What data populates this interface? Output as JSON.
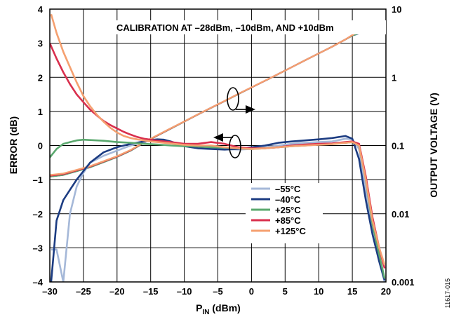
{
  "chart_data": {
    "type": "line",
    "annotation": "CALIBRATION AT –28dBm, –10dBm, AND +10dBm",
    "xlabel": {
      "main": "P",
      "sub": "IN",
      "suffix": " (dBm)"
    },
    "ylabel_left": "ERROR (dB)",
    "ylabel_right": "OUTPUT VOLTAGE (V)",
    "figure_id": "11617-015",
    "xlim": [
      -30,
      20
    ],
    "ylim_left": [
      -4,
      4
    ],
    "ylim_right": [
      0.001,
      10
    ],
    "right_axis_scale": "log",
    "grid": true,
    "legend_placement": "lower-right",
    "x_ticks": [
      "–30",
      "–25",
      "–20",
      "–15",
      "–10",
      "–5",
      "0",
      "5",
      "10",
      "15",
      "20"
    ],
    "x_tick_values": [
      -30,
      -25,
      -20,
      -15,
      -10,
      -5,
      0,
      5,
      10,
      15,
      20
    ],
    "y_left_ticks": [
      "4",
      "3",
      "2",
      "1",
      "0",
      "–1",
      "–2",
      "–3",
      "–4"
    ],
    "y_left_tick_values": [
      4,
      3,
      2,
      1,
      0,
      -1,
      -2,
      -3,
      -4
    ],
    "y_right_ticks": [
      "10",
      "1",
      "0.1",
      "0.01",
      "0.001"
    ],
    "y_right_tick_values": [
      10,
      1,
      0.1,
      0.01,
      0.001
    ],
    "series": [
      {
        "name": "–55°C",
        "color": "#a5b8d8",
        "error_x": [
          -29.8,
          -29.0,
          -28.0,
          -27.0,
          -26.0,
          -25.0,
          -24.0,
          -22.0,
          -20.0,
          -18.0,
          -16.0,
          -15.0,
          -14.0,
          -13.0,
          -12.0,
          -11.0,
          -10.0,
          -8.0,
          -6.0,
          -4.0,
          -2.0,
          0.0,
          2.0,
          4.0,
          6.0,
          8.0,
          10.0,
          12.0,
          14.0,
          15.0,
          16.0,
          17.0,
          18.0,
          19.0,
          19.8
        ],
        "error_y": [
          -3.05,
          -3.05,
          -4.0,
          -2.0,
          -1.2,
          -0.8,
          -0.5,
          -0.3,
          -0.15,
          0.0,
          0.1,
          0.15,
          0.17,
          0.15,
          0.1,
          0.05,
          0.0,
          -0.05,
          -0.07,
          -0.1,
          -0.12,
          -0.1,
          -0.05,
          0.0,
          0.05,
          0.08,
          0.1,
          0.12,
          0.2,
          0.18,
          -0.1,
          -1.3,
          -2.5,
          -3.4,
          -4.0
        ],
        "voltage_x": [
          -30,
          -28,
          -26,
          -24,
          -22,
          -20,
          -18,
          -16,
          -14,
          -12,
          -10,
          -8,
          -6,
          -4,
          -2,
          0,
          2,
          4,
          6,
          8,
          10,
          12,
          14,
          15,
          16,
          18,
          20
        ],
        "voltage_y": [
          0.036,
          0.038,
          0.043,
          0.049,
          0.058,
          0.069,
          0.085,
          0.112,
          0.142,
          0.179,
          0.226,
          0.286,
          0.36,
          0.45,
          0.57,
          0.71,
          0.89,
          1.12,
          1.41,
          1.78,
          2.24,
          2.82,
          3.6,
          4.1,
          4.4,
          4.47,
          4.5
        ]
      },
      {
        "name": "–40°C",
        "color": "#1c3c82",
        "error_x": [
          -29.8,
          -29.0,
          -28.0,
          -27.0,
          -26.0,
          -25.0,
          -24.0,
          -22.0,
          -20.0,
          -18.0,
          -16.0,
          -15.0,
          -14.0,
          -13.0,
          -12.0,
          -11.0,
          -10.0,
          -8.0,
          -6.0,
          -4.0,
          -2.0,
          0.0,
          2.0,
          4.0,
          6.0,
          8.0,
          10.0,
          12.0,
          14.0,
          15.0,
          16.0,
          17.0,
          18.0,
          19.0,
          19.8
        ],
        "error_y": [
          -4.0,
          -2.2,
          -1.6,
          -1.3,
          -1.0,
          -0.75,
          -0.5,
          -0.2,
          -0.05,
          0.05,
          0.12,
          0.16,
          0.18,
          0.17,
          0.12,
          0.05,
          -0.02,
          -0.08,
          -0.1,
          -0.12,
          -0.1,
          -0.05,
          0.0,
          0.08,
          0.12,
          0.15,
          0.18,
          0.22,
          0.28,
          0.2,
          -0.4,
          -1.6,
          -2.6,
          -3.4,
          -3.95
        ],
        "voltage_x": [
          -30,
          -28,
          -26,
          -24,
          -22,
          -20,
          -18,
          -16,
          -14,
          -12,
          -10,
          -8,
          -6,
          -4,
          -2,
          0,
          2,
          4,
          6,
          8,
          10,
          12,
          14,
          15,
          16,
          18,
          20
        ],
        "voltage_y": [
          0.035,
          0.037,
          0.042,
          0.048,
          0.057,
          0.068,
          0.084,
          0.11,
          0.14,
          0.177,
          0.224,
          0.284,
          0.357,
          0.448,
          0.565,
          0.71,
          0.89,
          1.12,
          1.41,
          1.78,
          2.24,
          2.82,
          3.6,
          4.1,
          4.4,
          4.47,
          4.5
        ]
      },
      {
        "name": "+25°C",
        "color": "#5aa86e",
        "error_x": [
          -30.0,
          -29.0,
          -28.0,
          -27.0,
          -26.0,
          -25.0,
          -24.0,
          -22.0,
          -20.0,
          -18.0,
          -16.0,
          -15.0,
          -14.0,
          -12.0,
          -10.0,
          -8.0,
          -6.0,
          -4.0,
          -2.0,
          0.0,
          2.0,
          4.0,
          6.0,
          8.0,
          10.0,
          12.0,
          14.0,
          15.0,
          16.0,
          17.0,
          18.0,
          19.0,
          19.8
        ],
        "error_y": [
          -0.35,
          -0.1,
          0.05,
          0.1,
          0.15,
          0.17,
          0.16,
          0.14,
          0.1,
          0.08,
          0.05,
          0.04,
          0.03,
          0.0,
          -0.02,
          -0.03,
          -0.05,
          -0.06,
          -0.08,
          -0.1,
          -0.08,
          -0.05,
          -0.02,
          0.0,
          0.03,
          0.05,
          0.08,
          0.1,
          0.0,
          -1.0,
          -2.3,
          -3.2,
          -3.9
        ],
        "voltage_x": [
          -30,
          -28,
          -26,
          -24,
          -22,
          -20,
          -18,
          -16,
          -14,
          -12,
          -10,
          -8,
          -6,
          -4,
          -2,
          0,
          2,
          4,
          6,
          8,
          10,
          12,
          14,
          15,
          16,
          18,
          20
        ],
        "voltage_y": [
          0.035,
          0.037,
          0.042,
          0.048,
          0.057,
          0.068,
          0.084,
          0.11,
          0.14,
          0.177,
          0.224,
          0.284,
          0.357,
          0.448,
          0.565,
          0.71,
          0.89,
          1.12,
          1.41,
          1.78,
          2.24,
          2.82,
          3.6,
          4.1,
          4.45,
          4.55,
          4.6
        ]
      },
      {
        "name": "+85°C",
        "color": "#d9304e",
        "error_x": [
          -30.0,
          -29.0,
          -28.0,
          -27.0,
          -26.0,
          -25.0,
          -24.0,
          -23.0,
          -22.0,
          -21.0,
          -20.0,
          -19.0,
          -18.0,
          -17.0,
          -16.0,
          -15.0,
          -14.0,
          -12.0,
          -10.0,
          -8.0,
          -6.0,
          -4.0,
          -2.0,
          0.0,
          2.0,
          4.0,
          6.0,
          8.0,
          10.0,
          12.0,
          14.0,
          15.0,
          16.0,
          17.0,
          18.0,
          19.0,
          19.8
        ],
        "error_y": [
          3.0,
          2.55,
          2.15,
          1.8,
          1.5,
          1.27,
          1.05,
          0.88,
          0.72,
          0.6,
          0.5,
          0.4,
          0.32,
          0.25,
          0.2,
          0.17,
          0.14,
          0.1,
          0.05,
          0.05,
          0.1,
          0.05,
          -0.05,
          -0.08,
          -0.08,
          -0.05,
          0.0,
          0.03,
          0.05,
          0.06,
          0.1,
          0.12,
          0.05,
          -0.9,
          -2.1,
          -3.0,
          -3.6
        ],
        "voltage_x": [
          -30,
          -28,
          -26,
          -24,
          -22,
          -20,
          -18,
          -16,
          -14,
          -12,
          -10,
          -8,
          -6,
          -4,
          -2,
          0,
          2,
          4,
          6,
          8,
          10,
          12,
          14,
          15,
          16,
          18,
          20
        ],
        "voltage_y": [
          0.036,
          0.038,
          0.043,
          0.049,
          0.058,
          0.069,
          0.085,
          0.111,
          0.141,
          0.178,
          0.225,
          0.285,
          0.358,
          0.45,
          0.567,
          0.712,
          0.892,
          1.12,
          1.41,
          1.78,
          2.24,
          2.82,
          3.6,
          4.15,
          4.9,
          5.0,
          5.05
        ]
      },
      {
        "name": "+125°C",
        "color": "#f5a070",
        "error_x": [
          -29.8,
          -29.0,
          -28.0,
          -27.0,
          -26.0,
          -25.0,
          -24.0,
          -23.0,
          -22.0,
          -21.0,
          -20.0,
          -19.0,
          -18.0,
          -17.0,
          -16.0,
          -15.0,
          -14.0,
          -12.0,
          -10.0,
          -8.0,
          -6.0,
          -4.0,
          -2.0,
          0.0,
          2.0,
          4.0,
          6.0,
          8.0,
          10.0,
          12.0,
          14.0,
          15.0,
          16.0,
          17.0,
          18.0,
          19.0,
          19.8
        ],
        "error_y": [
          3.85,
          3.3,
          2.75,
          2.3,
          1.85,
          1.45,
          1.15,
          0.9,
          0.7,
          0.52,
          0.38,
          0.28,
          0.22,
          0.18,
          0.15,
          0.12,
          0.1,
          0.06,
          0.02,
          0.0,
          0.0,
          -0.05,
          -0.08,
          -0.1,
          -0.08,
          -0.05,
          -0.02,
          0.0,
          0.02,
          0.04,
          0.08,
          0.1,
          0.0,
          -1.0,
          -2.2,
          -3.0,
          -3.5
        ],
        "voltage_x": [
          -30,
          -28,
          -26,
          -24,
          -22,
          -20,
          -18,
          -16,
          -14,
          -12,
          -10,
          -8,
          -6,
          -4,
          -2,
          0,
          2,
          4,
          6,
          8,
          10,
          12,
          14,
          15,
          16,
          18,
          20
        ],
        "voltage_y": [
          0.037,
          0.039,
          0.044,
          0.05,
          0.059,
          0.07,
          0.086,
          0.112,
          0.142,
          0.179,
          0.226,
          0.286,
          0.359,
          0.451,
          0.568,
          0.713,
          0.893,
          1.12,
          1.41,
          1.78,
          2.24,
          2.82,
          3.6,
          4.15,
          4.85,
          4.95,
          5.0
        ]
      }
    ]
  }
}
